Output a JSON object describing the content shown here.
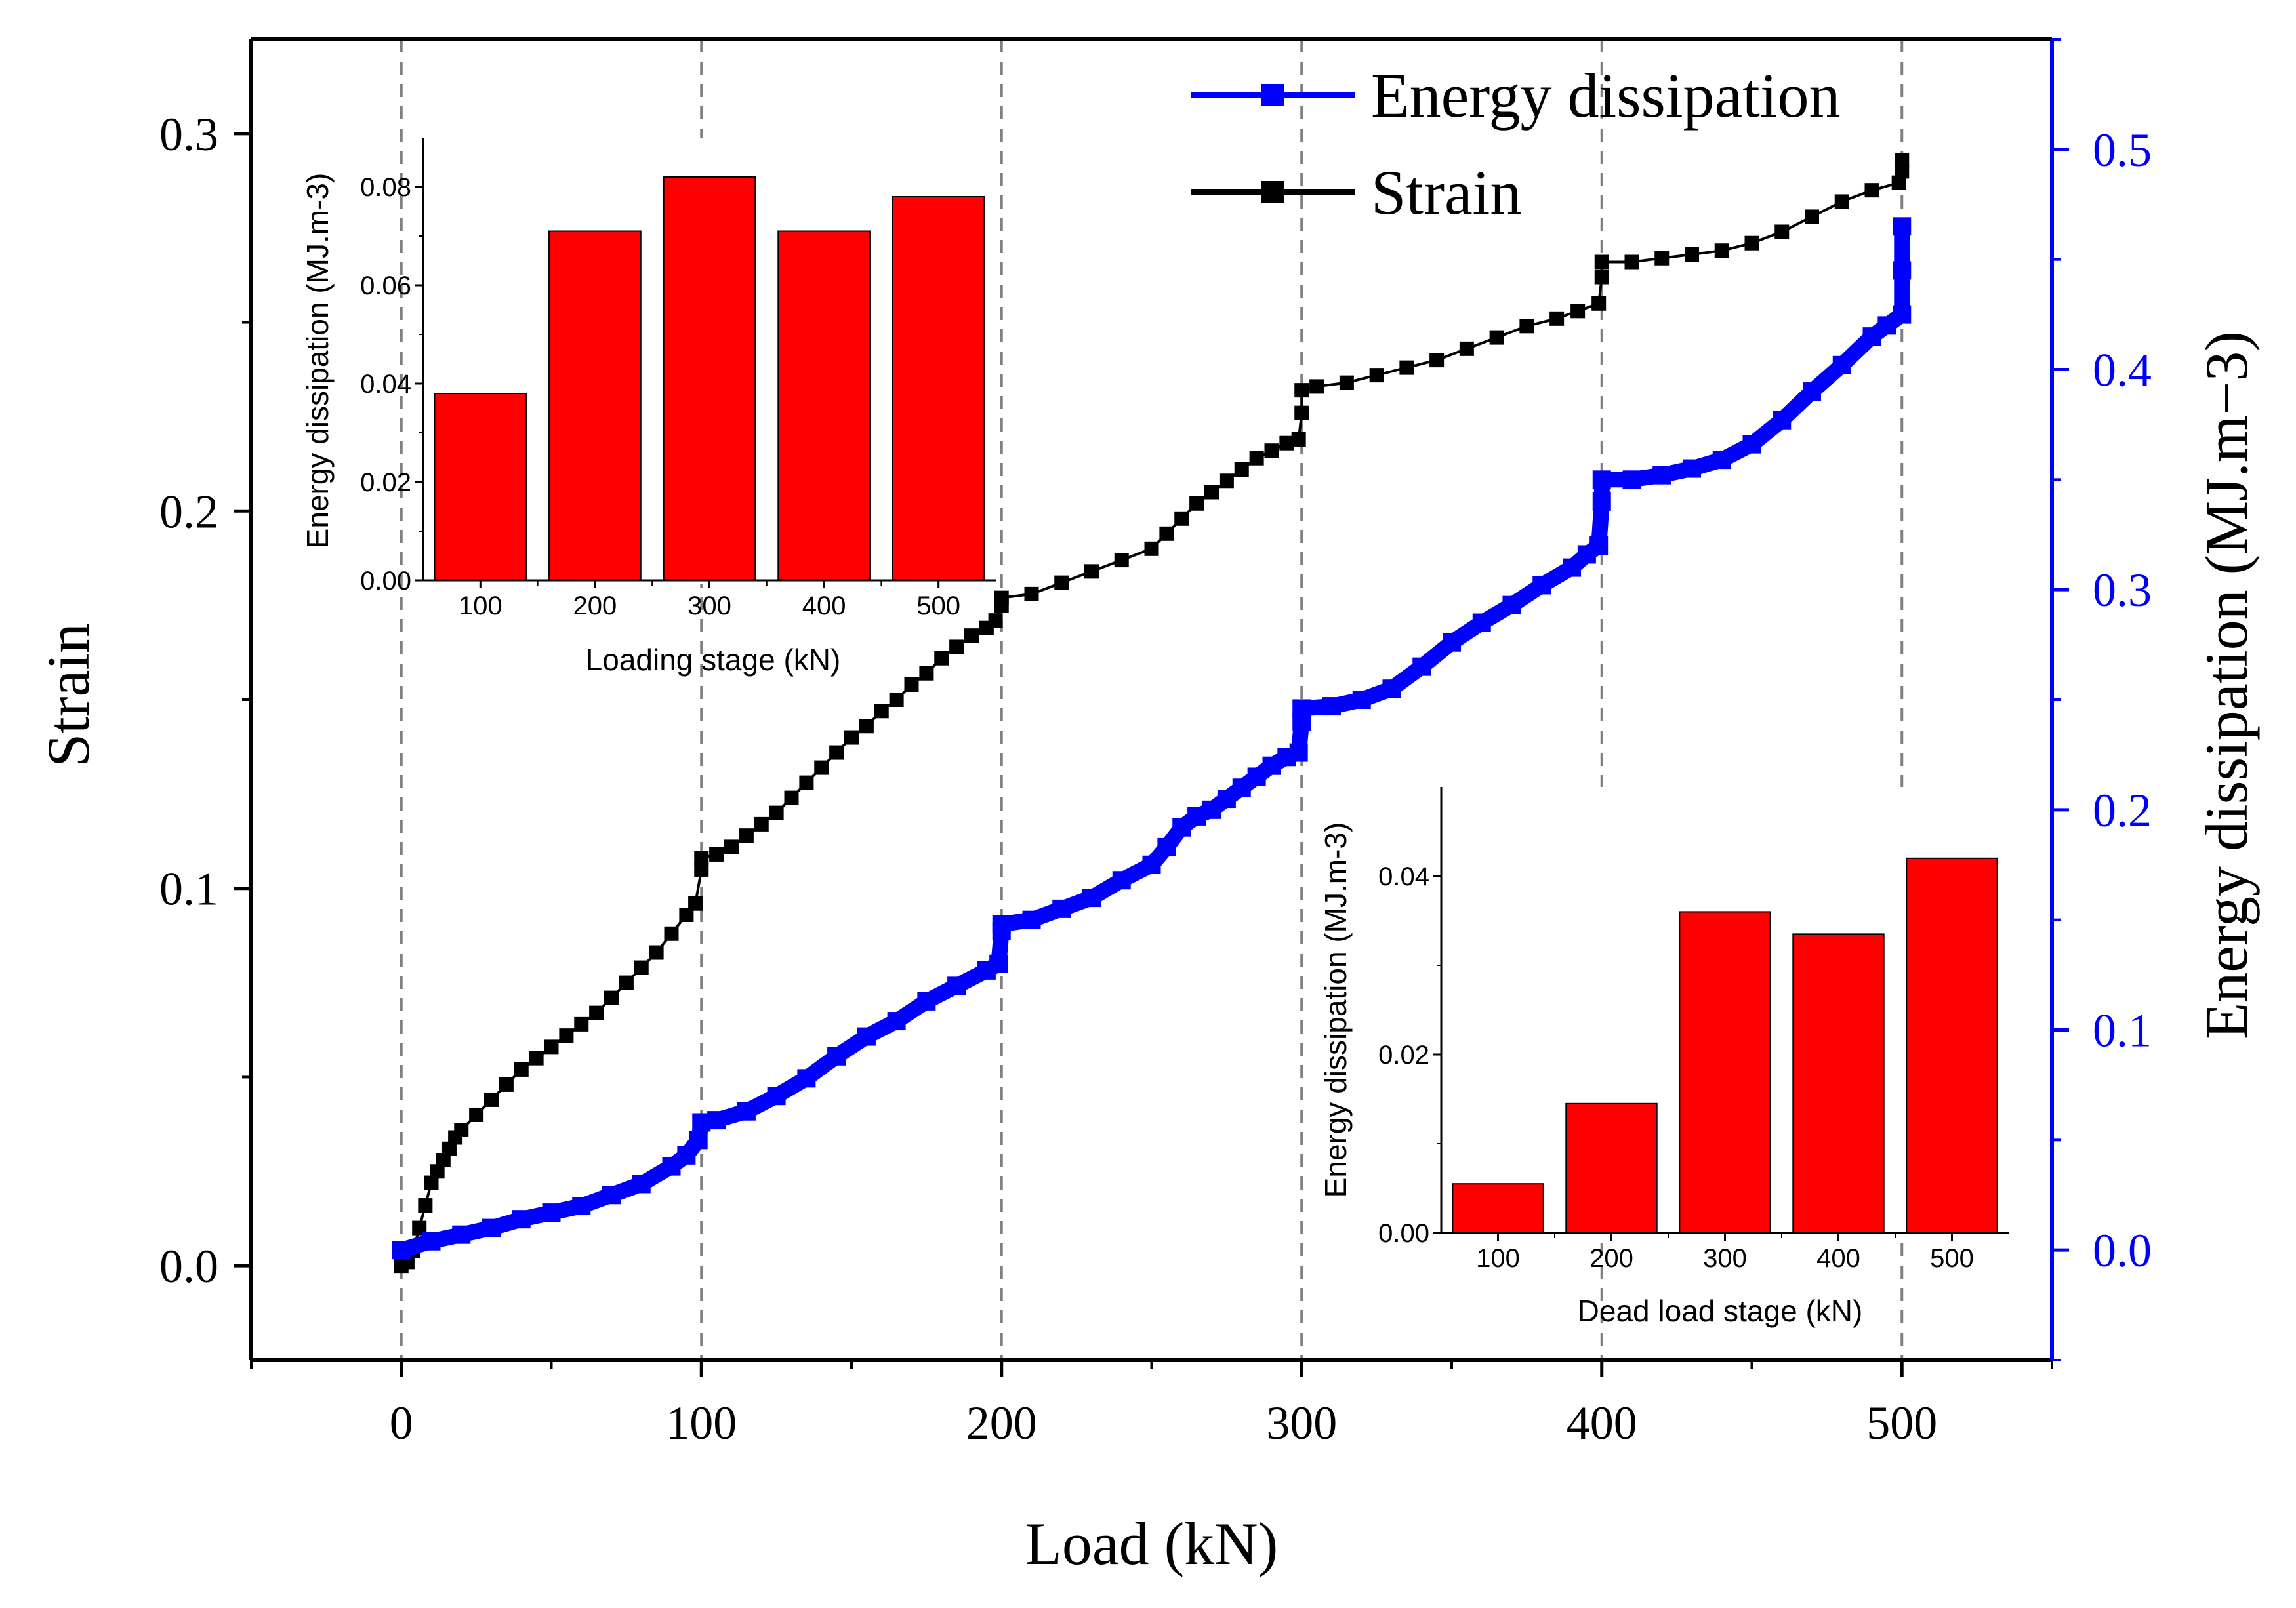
{
  "chart_data": [
    {
      "type": "line",
      "title": "",
      "xlabel": "Load (kN)",
      "ylabel": "Strain",
      "y2label": "Energy dissipation (MJ.m−3)",
      "xlim": [
        -50,
        550
      ],
      "ylim": [
        -0.025,
        0.325
      ],
      "y2lim": [
        -0.05,
        0.55
      ],
      "xticks": [
        "0",
        "100",
        "200",
        "300",
        "400",
        "500"
      ],
      "yticks": [
        "0.0",
        "0.1",
        "0.2",
        "0.3"
      ],
      "y2ticks": [
        "0.0",
        "0.1",
        "0.2",
        "0.3",
        "0.4",
        "0.5"
      ],
      "stage_lines_x": [
        0,
        100,
        200,
        300,
        400,
        500
      ],
      "legend_position": "top-right",
      "colors": {
        "strain": "#000000",
        "energy": "#0000ff",
        "bars": "#ff0000"
      },
      "series": [
        {
          "name": "Strain",
          "axis": "left",
          "points": [
            [
              0,
              0.0
            ],
            [
              2,
              0.001
            ],
            [
              4,
              0.004
            ],
            [
              6,
              0.01
            ],
            [
              8,
              0.016
            ],
            [
              10,
              0.022
            ],
            [
              12,
              0.025
            ],
            [
              14,
              0.028
            ],
            [
              16,
              0.031
            ],
            [
              18,
              0.034
            ],
            [
              20,
              0.036
            ],
            [
              25,
              0.04
            ],
            [
              30,
              0.044
            ],
            [
              35,
              0.048
            ],
            [
              40,
              0.052
            ],
            [
              45,
              0.055
            ],
            [
              50,
              0.058
            ],
            [
              55,
              0.061
            ],
            [
              60,
              0.064
            ],
            [
              65,
              0.067
            ],
            [
              70,
              0.071
            ],
            [
              75,
              0.075
            ],
            [
              80,
              0.079
            ],
            [
              85,
              0.083
            ],
            [
              90,
              0.088
            ],
            [
              95,
              0.093
            ],
            [
              98,
              0.096
            ],
            [
              100,
              0.105
            ],
            [
              100,
              0.108
            ],
            [
              105,
              0.109
            ],
            [
              110,
              0.111
            ],
            [
              115,
              0.114
            ],
            [
              120,
              0.117
            ],
            [
              125,
              0.12
            ],
            [
              130,
              0.124
            ],
            [
              135,
              0.128
            ],
            [
              140,
              0.132
            ],
            [
              145,
              0.136
            ],
            [
              150,
              0.14
            ],
            [
              155,
              0.143
            ],
            [
              160,
              0.147
            ],
            [
              165,
              0.15
            ],
            [
              170,
              0.154
            ],
            [
              175,
              0.157
            ],
            [
              180,
              0.161
            ],
            [
              185,
              0.164
            ],
            [
              190,
              0.167
            ],
            [
              195,
              0.169
            ],
            [
              198,
              0.171
            ],
            [
              200,
              0.175
            ],
            [
              200,
              0.177
            ],
            [
              210,
              0.178
            ],
            [
              220,
              0.181
            ],
            [
              230,
              0.184
            ],
            [
              240,
              0.187
            ],
            [
              250,
              0.19
            ],
            [
              255,
              0.194
            ],
            [
              260,
              0.198
            ],
            [
              265,
              0.202
            ],
            [
              270,
              0.205
            ],
            [
              275,
              0.208
            ],
            [
              280,
              0.211
            ],
            [
              285,
              0.214
            ],
            [
              290,
              0.216
            ],
            [
              295,
              0.218
            ],
            [
              299,
              0.219
            ],
            [
              300,
              0.226
            ],
            [
              300,
              0.232
            ],
            [
              305,
              0.233
            ],
            [
              315,
              0.234
            ],
            [
              325,
              0.236
            ],
            [
              335,
              0.238
            ],
            [
              345,
              0.24
            ],
            [
              355,
              0.243
            ],
            [
              365,
              0.246
            ],
            [
              375,
              0.249
            ],
            [
              385,
              0.251
            ],
            [
              392,
              0.253
            ],
            [
              399,
              0.255
            ],
            [
              400,
              0.262
            ],
            [
              400,
              0.266
            ],
            [
              410,
              0.266
            ],
            [
              420,
              0.267
            ],
            [
              430,
              0.268
            ],
            [
              440,
              0.269
            ],
            [
              450,
              0.271
            ],
            [
              460,
              0.274
            ],
            [
              470,
              0.278
            ],
            [
              480,
              0.282
            ],
            [
              490,
              0.285
            ],
            [
              499,
              0.287
            ],
            [
              500,
              0.29
            ],
            [
              500,
              0.293
            ]
          ]
        },
        {
          "name": "Energy dissipation",
          "axis": "right",
          "points": [
            [
              0,
              0.0
            ],
            [
              10,
              0.004
            ],
            [
              20,
              0.007
            ],
            [
              30,
              0.01
            ],
            [
              40,
              0.014
            ],
            [
              50,
              0.017
            ],
            [
              60,
              0.02
            ],
            [
              70,
              0.025
            ],
            [
              80,
              0.03
            ],
            [
              90,
              0.038
            ],
            [
              95,
              0.043
            ],
            [
              99,
              0.05
            ],
            [
              100,
              0.058
            ],
            [
              105,
              0.059
            ],
            [
              115,
              0.063
            ],
            [
              125,
              0.07
            ],
            [
              135,
              0.078
            ],
            [
              145,
              0.088
            ],
            [
              155,
              0.097
            ],
            [
              165,
              0.104
            ],
            [
              175,
              0.113
            ],
            [
              185,
              0.12
            ],
            [
              195,
              0.127
            ],
            [
              199,
              0.13
            ],
            [
              200,
              0.145
            ],
            [
              200,
              0.148
            ],
            [
              210,
              0.15
            ],
            [
              220,
              0.155
            ],
            [
              230,
              0.16
            ],
            [
              240,
              0.168
            ],
            [
              250,
              0.175
            ],
            [
              255,
              0.183
            ],
            [
              260,
              0.192
            ],
            [
              265,
              0.197
            ],
            [
              270,
              0.2
            ],
            [
              275,
              0.205
            ],
            [
              280,
              0.21
            ],
            [
              285,
              0.215
            ],
            [
              290,
              0.22
            ],
            [
              295,
              0.224
            ],
            [
              299,
              0.226
            ],
            [
              300,
              0.24
            ],
            [
              300,
              0.246
            ],
            [
              310,
              0.247
            ],
            [
              320,
              0.25
            ],
            [
              330,
              0.255
            ],
            [
              340,
              0.265
            ],
            [
              350,
              0.276
            ],
            [
              360,
              0.285
            ],
            [
              370,
              0.293
            ],
            [
              380,
              0.302
            ],
            [
              390,
              0.31
            ],
            [
              395,
              0.316
            ],
            [
              399,
              0.32
            ],
            [
              400,
              0.34
            ],
            [
              400,
              0.35
            ],
            [
              410,
              0.35
            ],
            [
              420,
              0.352
            ],
            [
              430,
              0.355
            ],
            [
              440,
              0.359
            ],
            [
              450,
              0.366
            ],
            [
              460,
              0.377
            ],
            [
              470,
              0.39
            ],
            [
              480,
              0.402
            ],
            [
              490,
              0.415
            ],
            [
              495,
              0.42
            ],
            [
              500,
              0.425
            ],
            [
              500,
              0.445
            ],
            [
              500,
              0.465
            ]
          ]
        }
      ]
    },
    {
      "type": "bar",
      "title": "",
      "xlabel": "Loading stage (kN)",
      "ylabel": "Energy dissipation (MJ.m-3)",
      "categories": [
        "100",
        "200",
        "300",
        "400",
        "500"
      ],
      "values": [
        0.038,
        0.071,
        0.082,
        0.071,
        0.078
      ],
      "ylim": [
        0,
        0.09
      ],
      "yticks": [
        "0.00",
        "0.02",
        "0.04",
        "0.06",
        "0.08"
      ],
      "color": "#ff0000"
    },
    {
      "type": "bar",
      "title": "",
      "xlabel": "Dead load stage (kN)",
      "ylabel": "Energy dissipation (MJ.m-3)",
      "categories": [
        "100",
        "200",
        "300",
        "400",
        "500"
      ],
      "values": [
        0.0055,
        0.0145,
        0.036,
        0.0335,
        0.042
      ],
      "ylim": [
        0,
        0.05
      ],
      "yticks": [
        "0.00",
        "0.02",
        "0.04"
      ],
      "color": "#ff0000"
    }
  ]
}
